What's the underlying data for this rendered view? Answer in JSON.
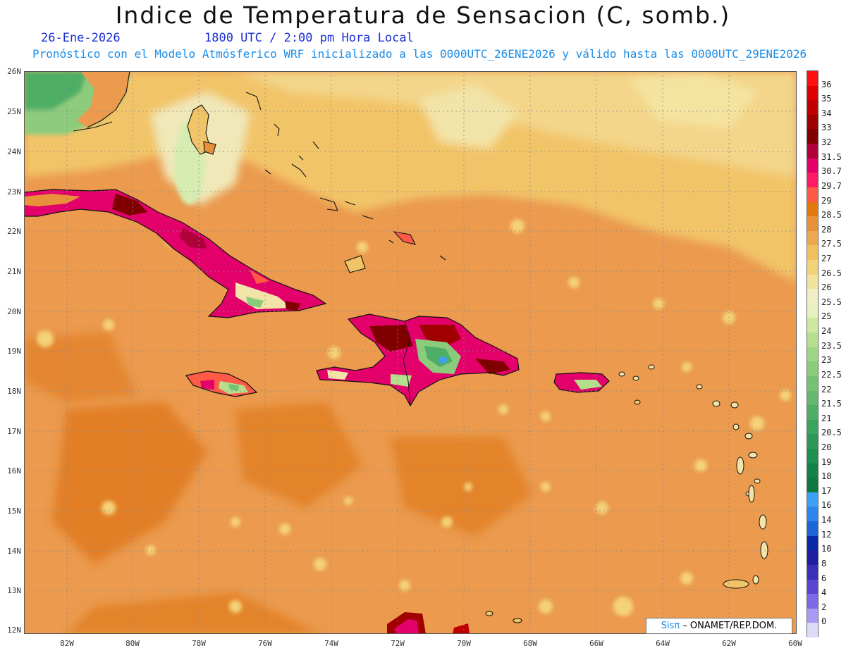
{
  "title": "Indice de Temperatura de Sensacion (C, somb.)",
  "date_label": "26-Ene-2026",
  "time_label": "1800 UTC / 2:00 pm Hora Local",
  "forecast_line": "Pronóstico con el Modelo Atmósferico WRF inicializado a las 0000UTC_26ENE2026 y válido hasta las  0000UTC_29ENE2026",
  "credit": {
    "brand": "Sisπ",
    "org": " – ONAMET/REP.DOM."
  },
  "latitude_labels": [
    "26N",
    "25N",
    "24N",
    "23N",
    "22N",
    "21N",
    "20N",
    "19N",
    "18N",
    "17N",
    "16N",
    "15N",
    "14N",
    "13N",
    "12N"
  ],
  "longitude_labels": [
    "82W",
    "80W",
    "78W",
    "76W",
    "74W",
    "72W",
    "70W",
    "68W",
    "66W",
    "64W",
    "62W",
    "60W"
  ],
  "colorbar": {
    "levels": [
      "36",
      "35",
      "34",
      "33",
      "32",
      "31.5",
      "30.7",
      "29.7",
      "29",
      "28.5",
      "28",
      "27.5",
      "27",
      "26.5",
      "26",
      "25.5",
      "25",
      "24",
      "23.5",
      "23",
      "22.5",
      "22",
      "21.5",
      "21",
      "20.5",
      "20",
      "19",
      "18",
      "17",
      "16",
      "14",
      "12",
      "10",
      "8",
      "6",
      "4",
      "2",
      "0"
    ],
    "colors": [
      "#ff1010",
      "#e00000",
      "#c00000",
      "#a00000",
      "#800000",
      "#b0003a",
      "#e4006b",
      "#ff1a66",
      "#ff5a46",
      "#e07a10",
      "#e8903a",
      "#efa650",
      "#f3c060",
      "#f4d278",
      "#f2e39c",
      "#f2eec4",
      "#e8f1c0",
      "#cfe8a0",
      "#b5df8c",
      "#9fd685",
      "#8acc7c",
      "#76c273",
      "#62b86c",
      "#4fae65",
      "#3aa35e",
      "#2a9957",
      "#1d8f4f",
      "#138246",
      "#0c7a3e",
      "#3ea0f5",
      "#2e86ec",
      "#1d66d8",
      "#0a28a8",
      "#1e1ea0",
      "#3a30b8",
      "#5a46d0",
      "#7e68e6",
      "#a89af4",
      "#dcdcf8"
    ]
  },
  "regions": {
    "cuba": "Cuba",
    "hispaniola": "Hispaniola",
    "jamaica": "Jamaica",
    "puerto_rico": "Puerto Rico",
    "florida": "Florida",
    "bahamas": "Bahamas",
    "lesser_antilles": "Antillas Menores",
    "south_america": "South America coast"
  }
}
